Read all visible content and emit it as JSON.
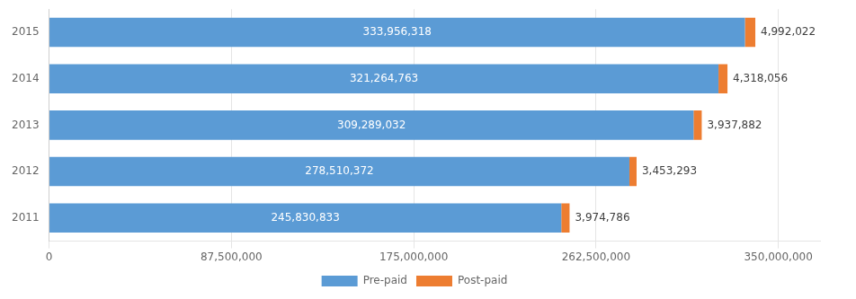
{
  "chart_data": {
    "type": "bar",
    "orientation": "horizontal",
    "stacked": true,
    "categories": [
      "2015",
      "2014",
      "2013",
      "2012",
      "2011"
    ],
    "series": [
      {
        "name": "Pre-paid",
        "color": "#5B9BD5",
        "values": [
          333956318,
          321264763,
          309289032,
          278510372,
          245830833
        ],
        "value_labels": [
          "333,956,318",
          "321,264,763",
          "309,289,032",
          "278,510,372",
          "245,830,833"
        ]
      },
      {
        "name": "Post-paid",
        "color": "#ED7D31",
        "values": [
          4992022,
          4318056,
          3937882,
          3453293,
          3974786
        ],
        "value_labels": [
          "4,992,022",
          "4,318,056",
          "3,937,882",
          "3,453,293",
          "3,974,786"
        ]
      }
    ],
    "xlim": [
      0,
      370000000
    ],
    "xticks": [
      0,
      {
        "value": 87500000,
        "label": "87,500,000"
      },
      {
        "value": 175000000,
        "label": "175,000,000"
      },
      {
        "value": 262500000,
        "label": "262,500,000"
      },
      {
        "value": 350000000,
        "label": "350,000,000"
      }
    ],
    "grid": true,
    "legend": "bottom",
    "data_labels": true
  }
}
